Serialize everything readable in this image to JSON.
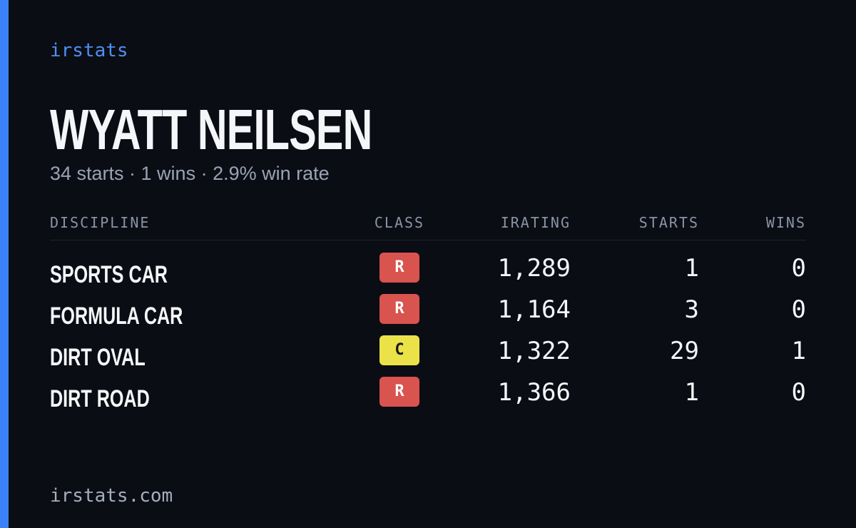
{
  "brand": "irstats",
  "driver": {
    "name": "WYATT NEILSEN",
    "summary": "34 starts · 1 wins · 2.9% win rate"
  },
  "table": {
    "columns": [
      "DISCIPLINE",
      "CLASS",
      "IRATING",
      "STARTS",
      "WINS"
    ],
    "rows": [
      [
        "SPORTS CAR",
        "R",
        "1,289",
        "1",
        "0"
      ],
      [
        "FORMULA CAR",
        "R",
        "1,164",
        "3",
        "0"
      ],
      [
        "DIRT OVAL",
        "C",
        "1,322",
        "29",
        "1"
      ],
      [
        "DIRT ROAD",
        "R",
        "1,366",
        "1",
        "0"
      ]
    ],
    "class_colors": {
      "R": "#d9534f",
      "C": "#ebe24a"
    }
  },
  "footer": "irstats.com"
}
